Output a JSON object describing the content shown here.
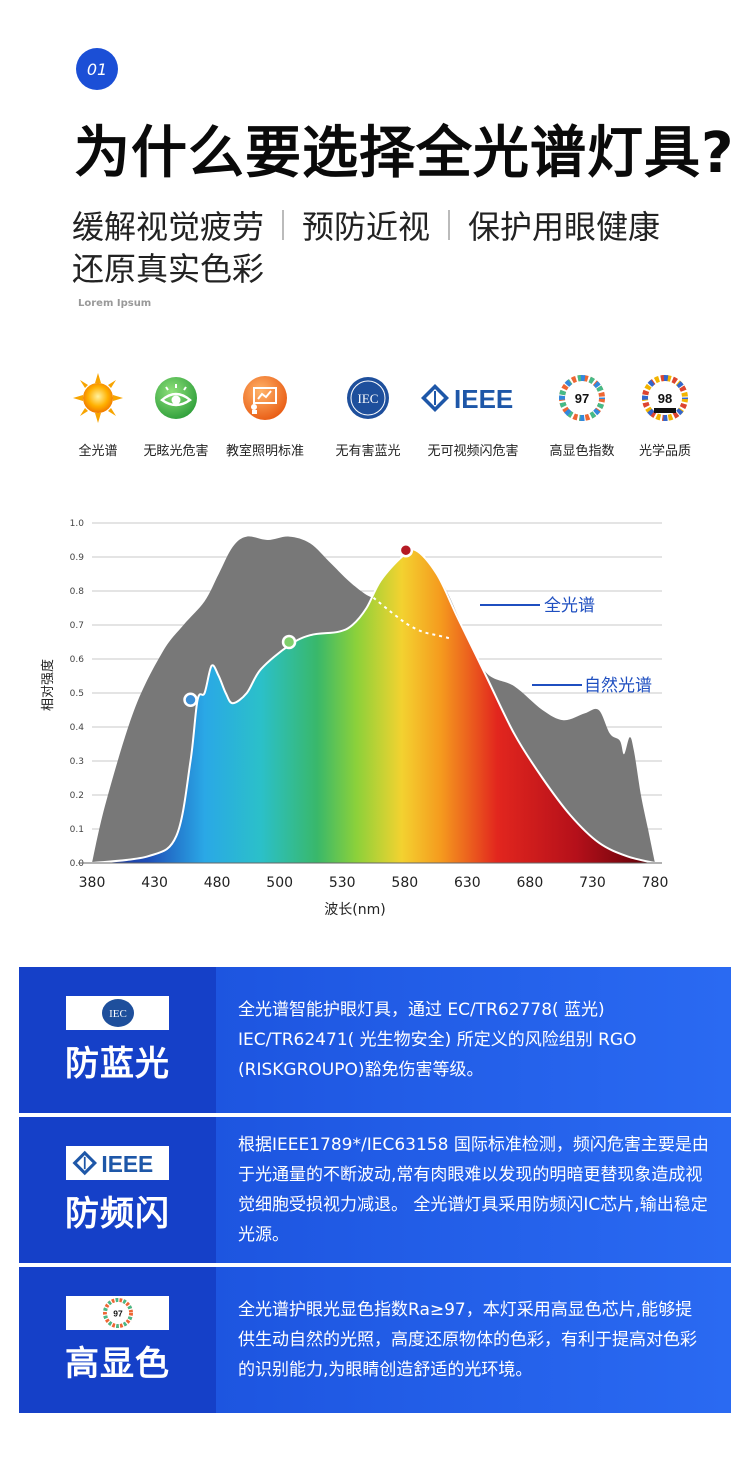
{
  "header": {
    "badge": "01",
    "title": "为什么要选择全光谱灯具?",
    "features": [
      "缓解视觉疲劳",
      "预防近视",
      "保护用眼健康",
      "还原真实色彩"
    ],
    "lorem": "Lorem Ipsum"
  },
  "icons": [
    {
      "label": "全光谱",
      "icon": "sun-icon"
    },
    {
      "label": "无眩光危害",
      "icon": "eye-icon"
    },
    {
      "label": "教室照明标准",
      "icon": "classroom-icon"
    },
    {
      "label": "无有害蓝光",
      "icon": "iec-logo-icon"
    },
    {
      "label": "无可视频闪危害",
      "icon": "ieee-logo-icon"
    },
    {
      "label": "高显色指数",
      "icon": "cri-97-icon",
      "value": "97"
    },
    {
      "label": "光学品质",
      "icon": "cri-98-icon",
      "value": "98"
    }
  ],
  "chart_data": {
    "type": "area",
    "xlabel": "波长(nm)",
    "ylabel": "相对强度",
    "xlim": [
      380,
      780
    ],
    "ylim": [
      0,
      1.0
    ],
    "xticks": [
      380,
      430,
      480,
      500,
      530,
      580,
      630,
      680,
      730,
      780
    ],
    "yticks": [
      "0.0",
      "0.1",
      "0.2",
      "0.3",
      "0.4",
      "0.5",
      "0.6",
      "0.7",
      "0.8",
      "0.9",
      "1.0"
    ],
    "grid": true,
    "series": [
      {
        "name": "全光谱",
        "color": "#777777",
        "x": [
          380,
          390,
          410,
          430,
          445,
          460,
          470,
          480,
          490,
          505,
          520,
          535,
          550,
          565,
          580,
          590,
          600,
          610,
          620,
          632,
          645,
          660,
          680,
          700,
          715,
          730,
          740,
          748,
          755,
          758,
          762,
          765,
          770,
          775,
          780
        ],
        "y": [
          0.0,
          0.18,
          0.45,
          0.62,
          0.7,
          0.77,
          0.85,
          0.93,
          0.96,
          0.95,
          0.96,
          0.94,
          0.88,
          0.82,
          0.78,
          0.8,
          0.86,
          0.9,
          0.88,
          0.8,
          0.68,
          0.56,
          0.52,
          0.45,
          0.42,
          0.44,
          0.45,
          0.38,
          0.36,
          0.32,
          0.37,
          0.33,
          0.2,
          0.1,
          0.0
        ]
      },
      {
        "name": "自然光谱",
        "color": "#ffffff",
        "x": [
          380,
          420,
          440,
          450,
          455,
          460,
          465,
          470,
          475,
          480,
          490,
          500,
          520,
          535,
          555,
          565,
          575,
          585,
          600,
          610,
          625,
          640,
          660,
          680,
          700,
          720,
          740,
          760,
          780
        ],
        "y": [
          0.0,
          0.02,
          0.08,
          0.3,
          0.48,
          0.5,
          0.58,
          0.55,
          0.5,
          0.47,
          0.5,
          0.57,
          0.64,
          0.67,
          0.68,
          0.7,
          0.75,
          0.83,
          0.9,
          0.92,
          0.85,
          0.72,
          0.55,
          0.38,
          0.25,
          0.14,
          0.06,
          0.02,
          0.0
        ]
      }
    ],
    "dashed_curve": {
      "x": [
        580,
        595,
        605,
        615,
        625,
        635
      ],
      "y": [
        0.78,
        0.73,
        0.7,
        0.68,
        0.67,
        0.66
      ]
    },
    "markers": [
      {
        "x": 450,
        "y": 0.48,
        "color": "#3b8fd6"
      },
      {
        "x": 520,
        "y": 0.65,
        "color": "#7fcf6b"
      },
      {
        "x": 603,
        "y": 0.92,
        "color": "#b51a24"
      }
    ]
  },
  "cards": [
    {
      "title": "防蓝光",
      "logo": "iec-logo",
      "text": "全光谱智能护眼灯具，通过 EC/TR62778( 蓝光) IEC/TR62471( 光生物安全) 所定义的风险组别 RGO (RISKGROUPO)豁免伤害等级。"
    },
    {
      "title": "防频闪",
      "logo": "ieee-logo",
      "text": "根据IEEE1789*/IEC63158 国际标准检测，频闪危害主要是由于光通量的不断波动,常有肉眼难以发现的明暗更替现象造成视觉细胞受损视力减退。 全光谱灯具采用防频闪IC芯片,输出稳定光源。"
    },
    {
      "title": "高显色",
      "logo": "cri-97-logo",
      "logo_value": "97",
      "text": "全光谱护眼光显色指数Ra≥97，本灯采用高显色芯片,能够提供生动自然的光照，高度还原物体的色彩，有利于提高对色彩的识别能力,为眼睛创造舒适的光环境。"
    }
  ],
  "colors": {
    "accent": "#1b4fd6",
    "card_left": "#1540c8",
    "card_right": "#2a6af2",
    "spectrum_label": "#1f4fc0"
  }
}
